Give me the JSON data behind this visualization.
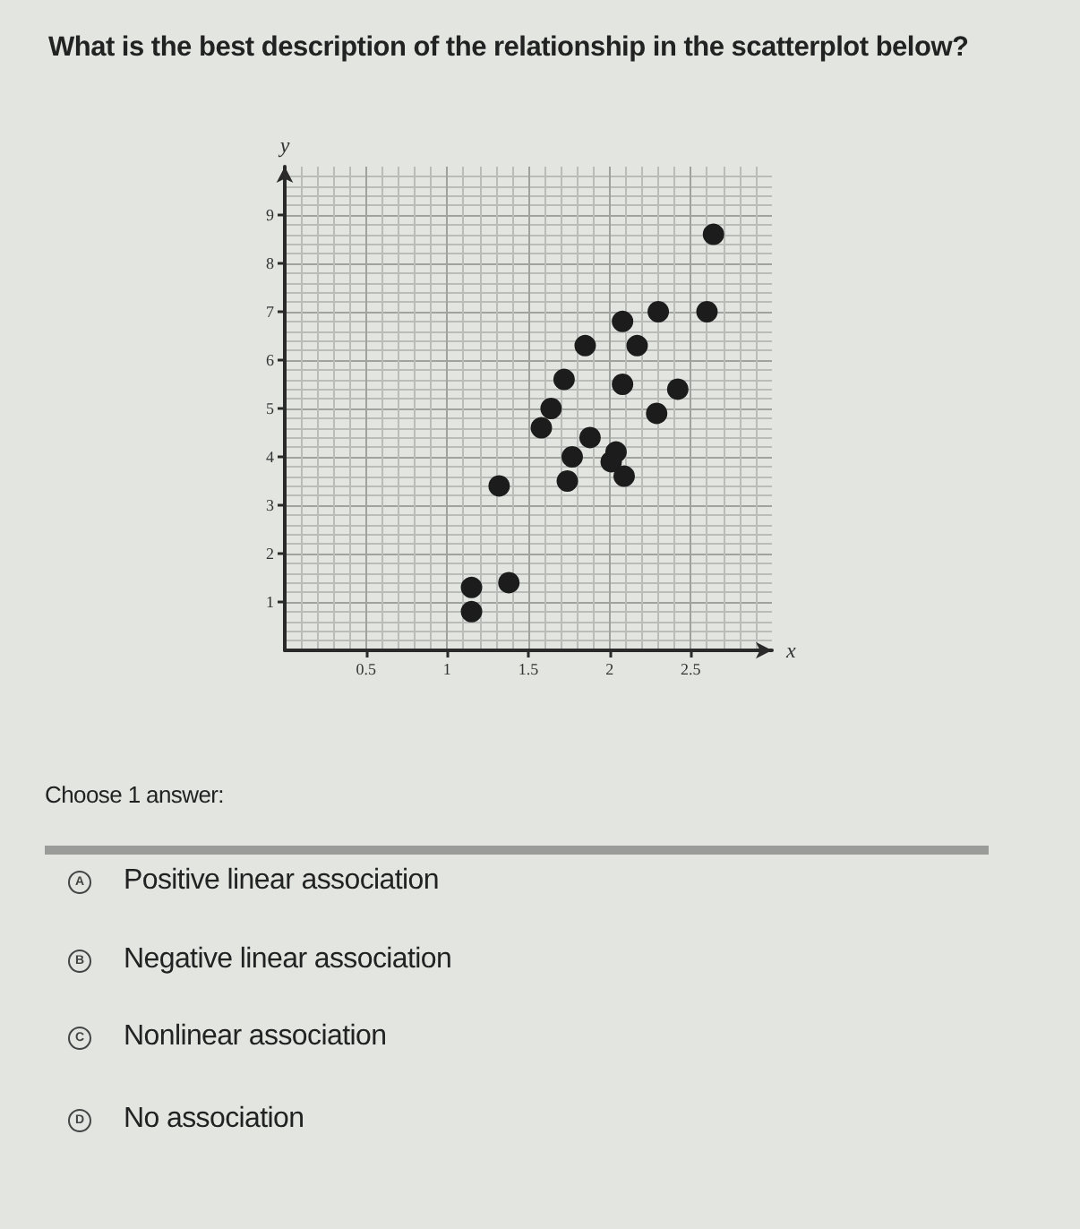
{
  "chart_data": {
    "type": "scatter",
    "title": "What is the best description of the relationship in the scatterplot below?",
    "xlabel": "x",
    "ylabel": "y",
    "x": [
      2.64,
      2.3,
      2.6,
      2.08,
      2.17,
      1.85,
      1.72,
      2.08,
      2.42,
      1.64,
      1.58,
      2.29,
      1.88,
      1.77,
      2.04,
      2.01,
      2.09,
      1.74,
      1.32,
      1.38,
      1.15,
      1.15
    ],
    "values": [
      8.6,
      7.0,
      7.0,
      6.8,
      6.3,
      6.3,
      5.6,
      5.5,
      5.4,
      5.0,
      4.6,
      4.9,
      4.4,
      4.0,
      4.1,
      3.9,
      3.6,
      3.5,
      3.4,
      1.4,
      1.3,
      0.8
    ],
    "color": "#1c1c1c",
    "marker": "circle",
    "xlim": [
      0,
      3
    ],
    "ylim": [
      0,
      10
    ],
    "xticks": [
      0.5,
      1,
      1.5,
      2,
      2.5
    ],
    "yticks": [
      1,
      2,
      3,
      4,
      5,
      6,
      7,
      8,
      9
    ],
    "grid": true,
    "annotations": [
      "Choose 1 answer:",
      "A",
      "Positive linear association",
      "B",
      "Negative linear association",
      "C",
      "Nonlinear association",
      "D",
      "No association"
    ]
  }
}
